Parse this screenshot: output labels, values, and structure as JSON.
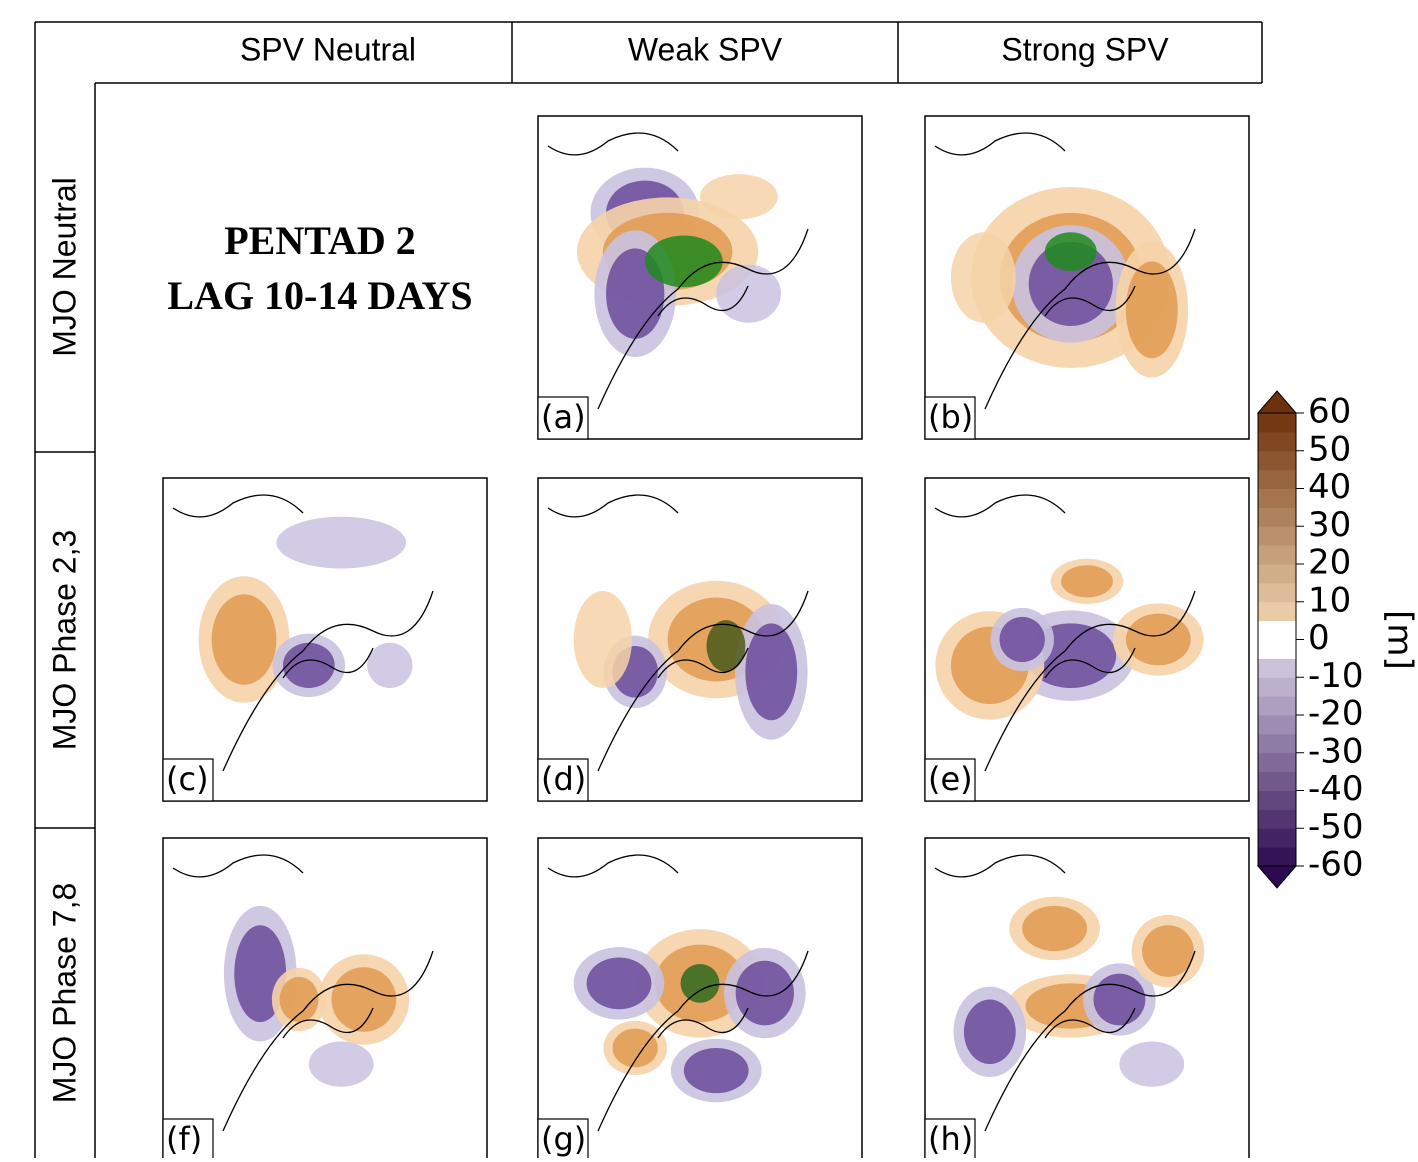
{
  "columns": [
    "SPV Neutral",
    "Weak SPV",
    "Strong SPV"
  ],
  "rows": [
    "MJO Neutral",
    "MJO Phase 2,3",
    "MJO Phase 7,8"
  ],
  "title": [
    "PENTAD 2",
    "LAG 10-14 DAYS"
  ],
  "panels": [
    "(a)",
    "(b)",
    "(c)",
    "(d)",
    "(e)",
    "(f)",
    "(g)",
    "(h)"
  ],
  "colorbar": {
    "range": [
      -60,
      60
    ],
    "ticks": [
      60,
      50,
      40,
      30,
      20,
      10,
      0,
      -10,
      -20,
      -30,
      -40,
      -50,
      -60
    ],
    "unit": "[m]"
  }
}
